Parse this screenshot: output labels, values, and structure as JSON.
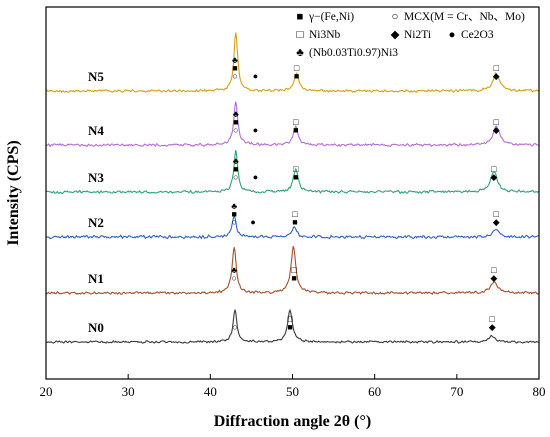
{
  "chart_data": {
    "type": "line",
    "xlabel": "Diffraction angle 2θ (°)",
    "ylabel": "Intensity (CPS)",
    "xlim": [
      20,
      80
    ],
    "x_ticks": [
      "20",
      "30",
      "40",
      "50",
      "60",
      "70",
      "80"
    ],
    "grid": false,
    "legend_position": "top-right",
    "legend": [
      {
        "marker": "■",
        "label": "γ−(Fe,Ni)"
      },
      {
        "marker": "○",
        "label": "MCX(M = Cr、Nb、Mo)"
      },
      {
        "marker": "□",
        "label": "Ni3Nb"
      },
      {
        "marker": "◆",
        "label": "Ni2Ti"
      },
      {
        "marker": "●",
        "label": "Ce2O3"
      },
      {
        "marker": "♣",
        "label": "(Nb0.03Ti0.97)Ni3"
      }
    ],
    "series": [
      {
        "name": "N0",
        "color": "#3a3a3a",
        "amplitude": 0.8,
        "peaks": [
          {
            "x": 43.0,
            "height": 1.0,
            "width": 0.28
          },
          {
            "x": 49.7,
            "height": 1.0,
            "width": 0.35
          },
          {
            "x": 74.3,
            "height": 0.18,
            "width": 0.5
          }
        ],
        "markers": [
          {
            "x": 43.0,
            "stack": [
              "○"
            ]
          },
          {
            "x": 49.7,
            "stack": [
              "□",
              "■"
            ]
          },
          {
            "x": 74.3,
            "stack": [
              "□",
              "◆"
            ]
          }
        ]
      },
      {
        "name": "N1",
        "color": "#a0522d",
        "amplitude": 0.9,
        "peaks": [
          {
            "x": 42.9,
            "height": 1.0,
            "width": 0.3
          },
          {
            "x": 50.1,
            "height": 1.0,
            "width": 0.35
          },
          {
            "x": 74.5,
            "height": 0.25,
            "width": 0.5
          }
        ],
        "markers": [
          {
            "x": 42.9,
            "stack": [
              "♣",
              "○"
            ]
          },
          {
            "x": 50.2,
            "stack": [
              "□",
              "■"
            ]
          },
          {
            "x": 74.5,
            "stack": [
              "□",
              "◆"
            ]
          }
        ]
      },
      {
        "name": "N2",
        "color": "#2f62c4",
        "amplitude": 1.1,
        "peaks": [
          {
            "x": 42.9,
            "height": 1.0,
            "width": 0.28
          },
          {
            "x": 50.2,
            "height": 0.45,
            "width": 0.35
          },
          {
            "x": 74.8,
            "height": 0.35,
            "width": 0.5
          }
        ],
        "markers": [
          {
            "x": 42.9,
            "stack": [
              "♣",
              "■",
              "○"
            ]
          },
          {
            "x": 45.2,
            "stack": [
              "●"
            ]
          },
          {
            "x": 50.3,
            "stack": [
              "□",
              "■"
            ]
          },
          {
            "x": 74.8,
            "stack": [
              "□",
              "◆"
            ]
          }
        ]
      },
      {
        "name": "N3",
        "color": "#2ea56e",
        "amplitude": 1.0,
        "peaks": [
          {
            "x": 43.1,
            "height": 1.0,
            "width": 0.28
          },
          {
            "x": 50.4,
            "height": 0.55,
            "width": 0.35
          },
          {
            "x": 74.5,
            "height": 0.5,
            "width": 0.5
          }
        ],
        "markers": [
          {
            "x": 43.1,
            "stack": [
              "♣",
              "■",
              "○"
            ]
          },
          {
            "x": 45.5,
            "stack": [
              "●"
            ]
          },
          {
            "x": 50.4,
            "stack": [
              "□",
              "■"
            ]
          },
          {
            "x": 74.5,
            "stack": [
              "□",
              "◆"
            ]
          }
        ]
      },
      {
        "name": "N4",
        "color": "#b36ed6",
        "amplitude": 1.0,
        "peaks": [
          {
            "x": 43.1,
            "height": 1.0,
            "width": 0.3
          },
          {
            "x": 50.4,
            "height": 0.45,
            "width": 0.35
          },
          {
            "x": 74.8,
            "height": 0.45,
            "width": 0.5
          }
        ],
        "markers": [
          {
            "x": 43.1,
            "stack": [
              "♣",
              "■",
              "○"
            ]
          },
          {
            "x": 45.5,
            "stack": [
              "●"
            ]
          },
          {
            "x": 50.4,
            "stack": [
              "□",
              "■"
            ]
          },
          {
            "x": 74.8,
            "stack": [
              "□",
              "◆"
            ]
          }
        ]
      },
      {
        "name": "N5",
        "color": "#d4a017",
        "amplitude": 0.9,
        "peaks": [
          {
            "x": 43.1,
            "height": 1.0,
            "width": 0.28
          },
          {
            "x": 50.5,
            "height": 0.3,
            "width": 0.35
          },
          {
            "x": 74.8,
            "height": 0.3,
            "width": 0.5
          }
        ],
        "markers": [
          {
            "x": 43.0,
            "stack": [
              "♣",
              "■",
              "○"
            ]
          },
          {
            "x": 45.5,
            "stack": [
              "●"
            ]
          },
          {
            "x": 50.5,
            "stack": [
              "□",
              "■"
            ]
          },
          {
            "x": 74.8,
            "stack": [
              "□",
              "◆"
            ]
          }
        ]
      }
    ]
  }
}
